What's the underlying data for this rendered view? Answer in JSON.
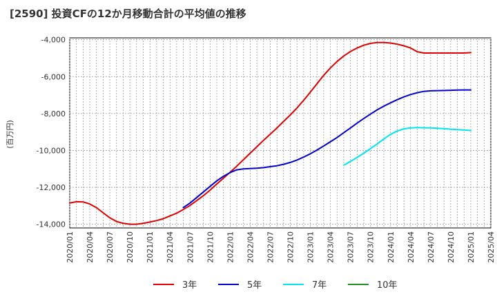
{
  "title": "[2590]  投資CFの12か月移動合計の平均値の推移",
  "chart_data": {
    "type": "line",
    "title": "[2590]  投資CFの12か月移動合計の平均値の推移",
    "ylabel": "(百万円)",
    "xlabel": "",
    "ylim": [
      -14200,
      -3900
    ],
    "yticks": [
      -4000,
      -6000,
      -8000,
      -10000,
      -12000,
      -14000
    ],
    "ytick_labels": [
      "-4,000",
      "-6,000",
      "-8,000",
      "-10,000",
      "-12,000",
      "-14,000"
    ],
    "xticks": [
      "2020/01",
      "2020/04",
      "2020/07",
      "2020/10",
      "2021/01",
      "2021/04",
      "2021/07",
      "2021/10",
      "2022/01",
      "2022/04",
      "2022/07",
      "2022/10",
      "2023/01",
      "2023/04",
      "2023/07",
      "2023/10",
      "2024/01",
      "2024/04",
      "2024/07",
      "2024/10",
      "2025/01",
      "2025/04"
    ],
    "grid": true,
    "legend_position": "bottom",
    "series": [
      {
        "name": "3年",
        "color": "#dd0000",
        "x": [
          "2020/01",
          "2020/02",
          "2020/03",
          "2020/04",
          "2020/05",
          "2020/06",
          "2020/07",
          "2020/08",
          "2020/09",
          "2020/10",
          "2020/11",
          "2020/12",
          "2021/01",
          "2021/02",
          "2021/03",
          "2021/04",
          "2021/05",
          "2021/06",
          "2021/07",
          "2021/08",
          "2021/09",
          "2021/10",
          "2021/11",
          "2021/12",
          "2022/01",
          "2022/02",
          "2022/03",
          "2022/04",
          "2022/05",
          "2022/06",
          "2022/07",
          "2022/08",
          "2022/09",
          "2022/10",
          "2022/11",
          "2022/12",
          "2023/01",
          "2023/02",
          "2023/03",
          "2023/04",
          "2023/05",
          "2023/06",
          "2023/07",
          "2023/08",
          "2023/09",
          "2023/10",
          "2023/11",
          "2023/12",
          "2024/01",
          "2024/02",
          "2024/03",
          "2024/04",
          "2024/05",
          "2024/06",
          "2024/07",
          "2024/08",
          "2024/09",
          "2024/10",
          "2024/11",
          "2024/12",
          "2025/01"
        ],
        "values": [
          -12850,
          -12780,
          -12790,
          -12900,
          -13100,
          -13380,
          -13650,
          -13850,
          -13950,
          -14000,
          -14000,
          -13950,
          -13880,
          -13800,
          -13700,
          -13550,
          -13400,
          -13200,
          -12980,
          -12720,
          -12450,
          -12150,
          -11820,
          -11500,
          -11180,
          -10850,
          -10500,
          -10150,
          -9800,
          -9450,
          -9120,
          -8780,
          -8430,
          -8080,
          -7700,
          -7280,
          -6840,
          -6380,
          -5930,
          -5530,
          -5180,
          -4880,
          -4640,
          -4450,
          -4300,
          -4200,
          -4150,
          -4150,
          -4180,
          -4240,
          -4330,
          -4450,
          -4650,
          -4720,
          -4720,
          -4720,
          -4720,
          -4720,
          -4720,
          -4720,
          -4700
        ]
      },
      {
        "name": "5年",
        "color": "#0000cc",
        "x": [
          "2021/06",
          "2021/07",
          "2021/08",
          "2021/09",
          "2021/10",
          "2021/11",
          "2021/12",
          "2022/01",
          "2022/02",
          "2022/03",
          "2022/04",
          "2022/05",
          "2022/06",
          "2022/07",
          "2022/08",
          "2022/09",
          "2022/10",
          "2022/11",
          "2022/12",
          "2023/01",
          "2023/02",
          "2023/03",
          "2023/04",
          "2023/05",
          "2023/06",
          "2023/07",
          "2023/08",
          "2023/09",
          "2023/10",
          "2023/11",
          "2023/12",
          "2024/01",
          "2024/02",
          "2024/03",
          "2024/04",
          "2024/05",
          "2024/06",
          "2024/07",
          "2024/08",
          "2024/09",
          "2024/10",
          "2024/11",
          "2024/12",
          "2025/01"
        ],
        "values": [
          -13100,
          -12850,
          -12550,
          -12250,
          -11950,
          -11650,
          -11400,
          -11200,
          -11050,
          -11000,
          -10980,
          -10960,
          -10930,
          -10880,
          -10830,
          -10750,
          -10650,
          -10520,
          -10360,
          -10180,
          -9980,
          -9760,
          -9530,
          -9300,
          -9040,
          -8780,
          -8520,
          -8270,
          -8030,
          -7800,
          -7600,
          -7420,
          -7250,
          -7100,
          -6970,
          -6870,
          -6800,
          -6770,
          -6760,
          -6750,
          -6740,
          -6730,
          -6720,
          -6720
        ]
      },
      {
        "name": "7年",
        "color": "#00e5ee",
        "x": [
          "2023/06",
          "2023/07",
          "2023/08",
          "2023/09",
          "2023/10",
          "2023/11",
          "2023/12",
          "2024/01",
          "2024/02",
          "2024/03",
          "2024/04",
          "2024/05",
          "2024/06",
          "2024/07",
          "2024/08",
          "2024/09",
          "2024/10",
          "2024/11",
          "2024/12",
          "2025/01"
        ],
        "values": [
          -10800,
          -10600,
          -10380,
          -10150,
          -9900,
          -9650,
          -9380,
          -9130,
          -8950,
          -8830,
          -8780,
          -8760,
          -8770,
          -8780,
          -8800,
          -8820,
          -8850,
          -8870,
          -8890,
          -8920
        ]
      },
      {
        "name": "10年",
        "color": "#228b22",
        "x": [],
        "values": []
      }
    ]
  }
}
